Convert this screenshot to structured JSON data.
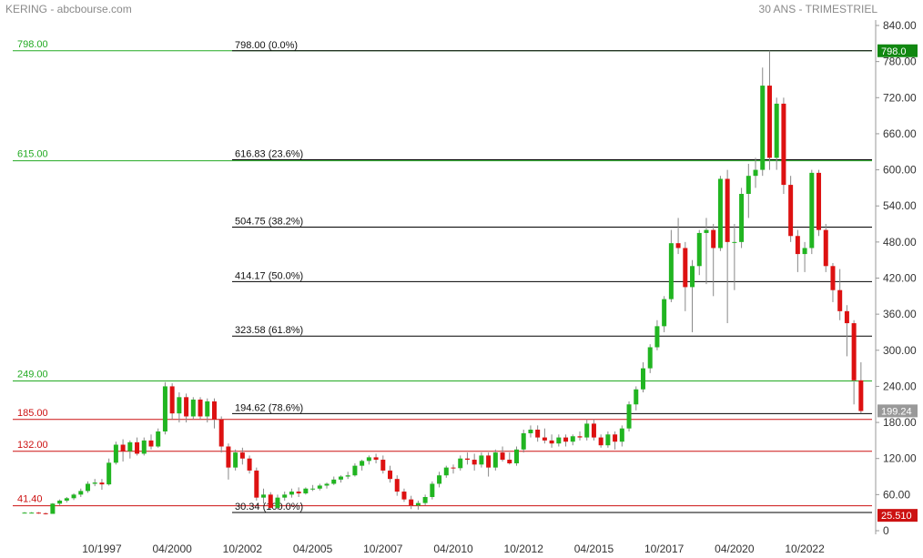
{
  "header": {
    "left_title": "KERING - abcbourse.com",
    "right_title": "30 ANS - TRIMESTRIEL"
  },
  "colors": {
    "up": "#21b521",
    "down": "#dd1111",
    "green_line": "#22aa22",
    "red_line": "#cc1111",
    "fib_line": "#000000",
    "tag_green": "#118811",
    "tag_red": "#cc1111",
    "tag_gray": "#999999"
  },
  "chart_data": {
    "type": "candlestick",
    "ylim": [
      0,
      840
    ],
    "y_ticks": [
      0,
      60,
      120,
      180,
      240,
      300,
      360,
      420,
      480,
      540,
      600,
      660,
      720,
      780,
      840
    ],
    "y_tick_labels": [
      "0",
      "60.00",
      "120.00",
      "180.00",
      "240.00",
      "300.00",
      "360.00",
      "420.00",
      "480.00",
      "540.00",
      "600.00",
      "660.00",
      "720.00",
      "780.00",
      "840.00"
    ],
    "x_range": [
      "1995-01",
      "2024-12"
    ],
    "x_ticks": [
      "10/1997",
      "04/2000",
      "10/2002",
      "04/2005",
      "10/2007",
      "04/2010",
      "10/2012",
      "04/2015",
      "10/2017",
      "04/2020",
      "10/2022"
    ],
    "x_tick_dates": [
      "1997-10",
      "2000-04",
      "2002-10",
      "2005-04",
      "2007-10",
      "2010-04",
      "2012-10",
      "2015-04",
      "2017-10",
      "2020-04",
      "2022-10"
    ],
    "fib_levels": [
      {
        "value": 798.0,
        "label": "798.00  (0.0%)"
      },
      {
        "value": 616.83,
        "label": "616.83  (23.6%)"
      },
      {
        "value": 504.75,
        "label": "504.75  (38.2%)"
      },
      {
        "value": 414.17,
        "label": "414.17  (50.0%)"
      },
      {
        "value": 323.58,
        "label": "323.58  (61.8%)"
      },
      {
        "value": 194.62,
        "label": "194.62  (78.6%)"
      },
      {
        "value": 30.34,
        "label": "30.34  (100.0%)"
      }
    ],
    "horizontal_levels": [
      {
        "value": 798.0,
        "label": "798.00",
        "color": "green"
      },
      {
        "value": 615.0,
        "label": "615.00",
        "color": "green"
      },
      {
        "value": 249.0,
        "label": "249.00",
        "color": "green"
      },
      {
        "value": 185.0,
        "label": "185.00",
        "color": "red"
      },
      {
        "value": 132.0,
        "label": "132.00",
        "color": "red"
      },
      {
        "value": 41.4,
        "label": "41.40",
        "color": "red"
      }
    ],
    "price_tags": [
      {
        "value": 798.0,
        "label": "798.0",
        "color": "green"
      },
      {
        "value": 199.24,
        "label": "199.24",
        "color": "gray"
      },
      {
        "value": 25.51,
        "label": "25.510",
        "color": "red"
      }
    ],
    "candles": [
      {
        "date": "1995-01",
        "o": 30,
        "h": 31,
        "l": 29,
        "c": 30
      },
      {
        "date": "1995-04",
        "o": 30,
        "h": 31,
        "l": 29,
        "c": 30
      },
      {
        "date": "1995-07",
        "o": 30,
        "h": 31,
        "l": 28,
        "c": 29
      },
      {
        "date": "1995-10",
        "o": 29,
        "h": 30,
        "l": 27,
        "c": 28
      },
      {
        "date": "1996-01",
        "o": 28,
        "h": 46,
        "l": 28,
        "c": 45
      },
      {
        "date": "1996-04",
        "o": 45,
        "h": 52,
        "l": 42,
        "c": 50
      },
      {
        "date": "1996-07",
        "o": 50,
        "h": 56,
        "l": 47,
        "c": 54
      },
      {
        "date": "1996-10",
        "o": 54,
        "h": 62,
        "l": 51,
        "c": 60
      },
      {
        "date": "1997-01",
        "o": 60,
        "h": 70,
        "l": 56,
        "c": 66
      },
      {
        "date": "1997-04",
        "o": 66,
        "h": 82,
        "l": 63,
        "c": 78
      },
      {
        "date": "1997-07",
        "o": 78,
        "h": 86,
        "l": 74,
        "c": 80
      },
      {
        "date": "1997-10",
        "o": 80,
        "h": 86,
        "l": 68,
        "c": 77
      },
      {
        "date": "1998-01",
        "o": 77,
        "h": 120,
        "l": 75,
        "c": 113
      },
      {
        "date": "1998-04",
        "o": 113,
        "h": 148,
        "l": 110,
        "c": 143
      },
      {
        "date": "1998-07",
        "o": 143,
        "h": 152,
        "l": 115,
        "c": 132
      },
      {
        "date": "1998-10",
        "o": 132,
        "h": 150,
        "l": 120,
        "c": 147
      },
      {
        "date": "1999-01",
        "o": 147,
        "h": 155,
        "l": 125,
        "c": 128
      },
      {
        "date": "1999-04",
        "o": 128,
        "h": 155,
        "l": 125,
        "c": 150
      },
      {
        "date": "1999-07",
        "o": 150,
        "h": 160,
        "l": 135,
        "c": 140
      },
      {
        "date": "1999-10",
        "o": 140,
        "h": 170,
        "l": 138,
        "c": 165
      },
      {
        "date": "2000-01",
        "o": 165,
        "h": 247,
        "l": 160,
        "c": 240
      },
      {
        "date": "2000-04",
        "o": 240,
        "h": 245,
        "l": 185,
        "c": 195
      },
      {
        "date": "2000-07",
        "o": 195,
        "h": 230,
        "l": 180,
        "c": 222
      },
      {
        "date": "2000-10",
        "o": 222,
        "h": 228,
        "l": 180,
        "c": 190
      },
      {
        "date": "2001-01",
        "o": 190,
        "h": 222,
        "l": 185,
        "c": 218
      },
      {
        "date": "2001-04",
        "o": 218,
        "h": 222,
        "l": 185,
        "c": 190
      },
      {
        "date": "2001-07",
        "o": 190,
        "h": 220,
        "l": 180,
        "c": 215
      },
      {
        "date": "2001-10",
        "o": 215,
        "h": 220,
        "l": 170,
        "c": 185
      },
      {
        "date": "2002-01",
        "o": 185,
        "h": 190,
        "l": 130,
        "c": 140
      },
      {
        "date": "2002-04",
        "o": 140,
        "h": 145,
        "l": 85,
        "c": 105
      },
      {
        "date": "2002-07",
        "o": 105,
        "h": 135,
        "l": 100,
        "c": 130
      },
      {
        "date": "2002-10",
        "o": 130,
        "h": 138,
        "l": 110,
        "c": 120
      },
      {
        "date": "2003-01",
        "o": 120,
        "h": 125,
        "l": 95,
        "c": 100
      },
      {
        "date": "2003-04",
        "o": 100,
        "h": 105,
        "l": 50,
        "c": 55
      },
      {
        "date": "2003-07",
        "o": 55,
        "h": 70,
        "l": 45,
        "c": 60
      },
      {
        "date": "2003-10",
        "o": 60,
        "h": 64,
        "l": 36,
        "c": 38
      },
      {
        "date": "2004-01",
        "o": 38,
        "h": 60,
        "l": 35,
        "c": 55
      },
      {
        "date": "2004-04",
        "o": 55,
        "h": 65,
        "l": 50,
        "c": 60
      },
      {
        "date": "2004-07",
        "o": 60,
        "h": 70,
        "l": 55,
        "c": 65
      },
      {
        "date": "2004-10",
        "o": 65,
        "h": 72,
        "l": 56,
        "c": 62
      },
      {
        "date": "2005-01",
        "o": 62,
        "h": 72,
        "l": 60,
        "c": 70
      },
      {
        "date": "2005-04",
        "o": 70,
        "h": 76,
        "l": 66,
        "c": 70
      },
      {
        "date": "2005-07",
        "o": 70,
        "h": 78,
        "l": 67,
        "c": 75
      },
      {
        "date": "2005-10",
        "o": 75,
        "h": 80,
        "l": 70,
        "c": 78
      },
      {
        "date": "2006-01",
        "o": 78,
        "h": 90,
        "l": 76,
        "c": 85
      },
      {
        "date": "2006-04",
        "o": 85,
        "h": 92,
        "l": 80,
        "c": 90
      },
      {
        "date": "2006-07",
        "o": 90,
        "h": 98,
        "l": 86,
        "c": 92
      },
      {
        "date": "2006-10",
        "o": 92,
        "h": 112,
        "l": 90,
        "c": 108
      },
      {
        "date": "2007-01",
        "o": 108,
        "h": 118,
        "l": 100,
        "c": 116
      },
      {
        "date": "2007-04",
        "o": 116,
        "h": 125,
        "l": 110,
        "c": 122
      },
      {
        "date": "2007-07",
        "o": 122,
        "h": 128,
        "l": 112,
        "c": 118
      },
      {
        "date": "2007-10",
        "o": 118,
        "h": 125,
        "l": 95,
        "c": 100
      },
      {
        "date": "2008-01",
        "o": 100,
        "h": 108,
        "l": 80,
        "c": 86
      },
      {
        "date": "2008-04",
        "o": 86,
        "h": 92,
        "l": 58,
        "c": 65
      },
      {
        "date": "2008-07",
        "o": 65,
        "h": 70,
        "l": 48,
        "c": 52
      },
      {
        "date": "2008-10",
        "o": 52,
        "h": 58,
        "l": 36,
        "c": 42
      },
      {
        "date": "2009-01",
        "o": 42,
        "h": 50,
        "l": 35,
        "c": 46
      },
      {
        "date": "2009-04",
        "o": 46,
        "h": 60,
        "l": 42,
        "c": 56
      },
      {
        "date": "2009-07",
        "o": 56,
        "h": 82,
        "l": 52,
        "c": 78
      },
      {
        "date": "2009-10",
        "o": 78,
        "h": 98,
        "l": 72,
        "c": 92
      },
      {
        "date": "2010-01",
        "o": 92,
        "h": 108,
        "l": 88,
        "c": 105
      },
      {
        "date": "2010-04",
        "o": 105,
        "h": 110,
        "l": 95,
        "c": 104
      },
      {
        "date": "2010-07",
        "o": 104,
        "h": 125,
        "l": 100,
        "c": 120
      },
      {
        "date": "2010-10",
        "o": 120,
        "h": 130,
        "l": 110,
        "c": 118
      },
      {
        "date": "2011-01",
        "o": 118,
        "h": 128,
        "l": 100,
        "c": 110
      },
      {
        "date": "2011-04",
        "o": 110,
        "h": 130,
        "l": 105,
        "c": 125
      },
      {
        "date": "2011-07",
        "o": 125,
        "h": 130,
        "l": 90,
        "c": 105
      },
      {
        "date": "2011-10",
        "o": 105,
        "h": 135,
        "l": 100,
        "c": 130
      },
      {
        "date": "2012-01",
        "o": 130,
        "h": 140,
        "l": 115,
        "c": 118
      },
      {
        "date": "2012-04",
        "o": 118,
        "h": 130,
        "l": 110,
        "c": 112
      },
      {
        "date": "2012-07",
        "o": 112,
        "h": 140,
        "l": 108,
        "c": 135
      },
      {
        "date": "2012-10",
        "o": 135,
        "h": 168,
        "l": 130,
        "c": 162
      },
      {
        "date": "2013-01",
        "o": 162,
        "h": 175,
        "l": 155,
        "c": 168
      },
      {
        "date": "2013-04",
        "o": 168,
        "h": 175,
        "l": 148,
        "c": 155
      },
      {
        "date": "2013-07",
        "o": 155,
        "h": 170,
        "l": 145,
        "c": 150
      },
      {
        "date": "2013-10",
        "o": 150,
        "h": 160,
        "l": 138,
        "c": 145
      },
      {
        "date": "2014-01",
        "o": 145,
        "h": 160,
        "l": 140,
        "c": 155
      },
      {
        "date": "2014-04",
        "o": 155,
        "h": 160,
        "l": 140,
        "c": 148
      },
      {
        "date": "2014-07",
        "o": 148,
        "h": 160,
        "l": 142,
        "c": 157
      },
      {
        "date": "2014-10",
        "o": 157,
        "h": 165,
        "l": 150,
        "c": 155
      },
      {
        "date": "2015-01",
        "o": 155,
        "h": 185,
        "l": 150,
        "c": 178
      },
      {
        "date": "2015-04",
        "o": 178,
        "h": 185,
        "l": 150,
        "c": 155
      },
      {
        "date": "2015-07",
        "o": 155,
        "h": 160,
        "l": 138,
        "c": 142
      },
      {
        "date": "2015-10",
        "o": 142,
        "h": 165,
        "l": 138,
        "c": 160
      },
      {
        "date": "2016-01",
        "o": 160,
        "h": 165,
        "l": 135,
        "c": 148
      },
      {
        "date": "2016-04",
        "o": 148,
        "h": 175,
        "l": 140,
        "c": 170
      },
      {
        "date": "2016-07",
        "o": 170,
        "h": 215,
        "l": 165,
        "c": 210
      },
      {
        "date": "2016-10",
        "o": 210,
        "h": 240,
        "l": 200,
        "c": 235
      },
      {
        "date": "2017-01",
        "o": 235,
        "h": 280,
        "l": 230,
        "c": 270
      },
      {
        "date": "2017-04",
        "o": 270,
        "h": 310,
        "l": 262,
        "c": 305
      },
      {
        "date": "2017-07",
        "o": 305,
        "h": 350,
        "l": 300,
        "c": 340
      },
      {
        "date": "2017-10",
        "o": 340,
        "h": 390,
        "l": 330,
        "c": 385
      },
      {
        "date": "2018-01",
        "o": 385,
        "h": 500,
        "l": 380,
        "c": 478
      },
      {
        "date": "2018-04",
        "o": 478,
        "h": 520,
        "l": 460,
        "c": 470
      },
      {
        "date": "2018-07",
        "o": 470,
        "h": 480,
        "l": 365,
        "c": 405
      },
      {
        "date": "2018-10",
        "o": 405,
        "h": 450,
        "l": 330,
        "c": 440
      },
      {
        "date": "2019-01",
        "o": 440,
        "h": 500,
        "l": 425,
        "c": 495
      },
      {
        "date": "2019-04",
        "o": 495,
        "h": 520,
        "l": 410,
        "c": 500
      },
      {
        "date": "2019-07",
        "o": 500,
        "h": 510,
        "l": 390,
        "c": 470
      },
      {
        "date": "2019-10",
        "o": 470,
        "h": 590,
        "l": 465,
        "c": 585
      },
      {
        "date": "2020-01",
        "o": 585,
        "h": 600,
        "l": 345,
        "c": 480
      },
      {
        "date": "2020-04",
        "o": 480,
        "h": 510,
        "l": 400,
        "c": 480
      },
      {
        "date": "2020-07",
        "o": 480,
        "h": 570,
        "l": 470,
        "c": 560
      },
      {
        "date": "2020-10",
        "o": 560,
        "h": 610,
        "l": 520,
        "c": 590
      },
      {
        "date": "2021-01",
        "o": 590,
        "h": 620,
        "l": 570,
        "c": 600
      },
      {
        "date": "2021-04",
        "o": 600,
        "h": 770,
        "l": 590,
        "c": 740
      },
      {
        "date": "2021-07",
        "o": 740,
        "h": 798,
        "l": 600,
        "c": 620
      },
      {
        "date": "2021-10",
        "o": 620,
        "h": 720,
        "l": 600,
        "c": 710
      },
      {
        "date": "2022-01",
        "o": 710,
        "h": 720,
        "l": 560,
        "c": 575
      },
      {
        "date": "2022-04",
        "o": 575,
        "h": 590,
        "l": 480,
        "c": 490
      },
      {
        "date": "2022-07",
        "o": 490,
        "h": 500,
        "l": 430,
        "c": 460
      },
      {
        "date": "2022-10",
        "o": 460,
        "h": 480,
        "l": 430,
        "c": 470
      },
      {
        "date": "2023-01",
        "o": 470,
        "h": 600,
        "l": 460,
        "c": 595
      },
      {
        "date": "2023-04",
        "o": 595,
        "h": 600,
        "l": 490,
        "c": 500
      },
      {
        "date": "2023-07",
        "o": 500,
        "h": 510,
        "l": 430,
        "c": 440
      },
      {
        "date": "2023-10",
        "o": 440,
        "h": 445,
        "l": 380,
        "c": 400
      },
      {
        "date": "2024-01",
        "o": 400,
        "h": 435,
        "l": 350,
        "c": 365
      },
      {
        "date": "2024-04",
        "o": 365,
        "h": 375,
        "l": 290,
        "c": 345
      },
      {
        "date": "2024-07",
        "o": 345,
        "h": 350,
        "l": 210,
        "c": 250
      },
      {
        "date": "2024-10",
        "o": 250,
        "h": 280,
        "l": 195,
        "c": 199
      }
    ]
  }
}
